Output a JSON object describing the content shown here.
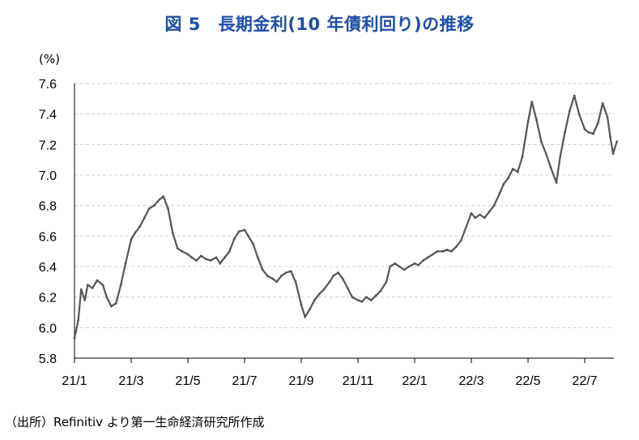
{
  "title": "図 5　長期金利(10 年債利回り)の推移",
  "unit": "(%)",
  "source": "（出所）Refinitiv より第一生命経済研究所作成",
  "chart_data": {
    "type": "line",
    "title": "図 5　長期金利(10 年債利回り)の推移",
    "xlabel": "",
    "ylabel": "(%)",
    "ylim": [
      5.8,
      7.6
    ],
    "yticks": [
      "5.8",
      "6.0",
      "6.2",
      "6.4",
      "6.6",
      "6.8",
      "7.0",
      "7.2",
      "7.4",
      "7.6"
    ],
    "xticks": [
      "21/1",
      "21/3",
      "21/5",
      "21/7",
      "21/9",
      "21/11",
      "22/1",
      "22/3",
      "22/5",
      "22/7"
    ],
    "grid": "horizontal dashed",
    "line_color": "#555555",
    "series": [
      {
        "name": "",
        "points": [
          [
            "2021-01-01",
            5.93
          ],
          [
            "2021-01-05",
            6.05
          ],
          [
            "2021-01-08",
            6.25
          ],
          [
            "2021-01-12",
            6.18
          ],
          [
            "2021-01-15",
            6.28
          ],
          [
            "2021-01-20",
            6.26
          ],
          [
            "2021-01-25",
            6.31
          ],
          [
            "2021-02-01",
            6.28
          ],
          [
            "2021-02-05",
            6.2
          ],
          [
            "2021-02-10",
            6.14
          ],
          [
            "2021-02-15",
            6.16
          ],
          [
            "2021-02-20",
            6.28
          ],
          [
            "2021-02-25",
            6.42
          ],
          [
            "2021-03-01",
            6.58
          ],
          [
            "2021-03-05",
            6.62
          ],
          [
            "2021-03-10",
            6.66
          ],
          [
            "2021-03-15",
            6.72
          ],
          [
            "2021-03-20",
            6.78
          ],
          [
            "2021-03-25",
            6.8
          ],
          [
            "2021-04-01",
            6.84
          ],
          [
            "2021-04-05",
            6.86
          ],
          [
            "2021-04-10",
            6.78
          ],
          [
            "2021-04-15",
            6.62
          ],
          [
            "2021-04-20",
            6.52
          ],
          [
            "2021-04-25",
            6.5
          ],
          [
            "2021-05-01",
            6.48
          ],
          [
            "2021-05-05",
            6.46
          ],
          [
            "2021-05-10",
            6.44
          ],
          [
            "2021-05-15",
            6.47
          ],
          [
            "2021-05-20",
            6.45
          ],
          [
            "2021-05-25",
            6.44
          ],
          [
            "2021-06-01",
            6.46
          ],
          [
            "2021-06-05",
            6.42
          ],
          [
            "2021-06-10",
            6.46
          ],
          [
            "2021-06-15",
            6.5
          ],
          [
            "2021-06-20",
            6.58
          ],
          [
            "2021-06-25",
            6.63
          ],
          [
            "2021-07-01",
            6.64
          ],
          [
            "2021-07-05",
            6.6
          ],
          [
            "2021-07-10",
            6.55
          ],
          [
            "2021-07-15",
            6.46
          ],
          [
            "2021-07-20",
            6.38
          ],
          [
            "2021-07-25",
            6.34
          ],
          [
            "2021-08-01",
            6.32
          ],
          [
            "2021-08-05",
            6.3
          ],
          [
            "2021-08-10",
            6.34
          ],
          [
            "2021-08-15",
            6.36
          ],
          [
            "2021-08-20",
            6.37
          ],
          [
            "2021-08-25",
            6.3
          ],
          [
            "2021-09-01",
            6.15
          ],
          [
            "2021-09-05",
            6.07
          ],
          [
            "2021-09-10",
            6.12
          ],
          [
            "2021-09-15",
            6.18
          ],
          [
            "2021-09-20",
            6.22
          ],
          [
            "2021-09-25",
            6.25
          ],
          [
            "2021-10-01",
            6.3
          ],
          [
            "2021-10-05",
            6.34
          ],
          [
            "2021-10-10",
            6.36
          ],
          [
            "2021-10-15",
            6.32
          ],
          [
            "2021-10-20",
            6.26
          ],
          [
            "2021-10-25",
            6.2
          ],
          [
            "2021-11-01",
            6.18
          ],
          [
            "2021-11-05",
            6.17
          ],
          [
            "2021-11-10",
            6.2
          ],
          [
            "2021-11-15",
            6.18
          ],
          [
            "2021-11-20",
            6.21
          ],
          [
            "2021-11-25",
            6.24
          ],
          [
            "2021-12-01",
            6.3
          ],
          [
            "2021-12-05",
            6.4
          ],
          [
            "2021-12-10",
            6.42
          ],
          [
            "2021-12-15",
            6.4
          ],
          [
            "2021-12-20",
            6.38
          ],
          [
            "2021-12-25",
            6.4
          ],
          [
            "2022-01-01",
            6.42
          ],
          [
            "2022-01-05",
            6.41
          ],
          [
            "2022-01-10",
            6.44
          ],
          [
            "2022-01-15",
            6.46
          ],
          [
            "2022-01-20",
            6.48
          ],
          [
            "2022-01-25",
            6.5
          ],
          [
            "2022-02-01",
            6.5
          ],
          [
            "2022-02-05",
            6.51
          ],
          [
            "2022-02-10",
            6.5
          ],
          [
            "2022-02-15",
            6.53
          ],
          [
            "2022-02-20",
            6.57
          ],
          [
            "2022-03-01",
            6.75
          ],
          [
            "2022-03-05",
            6.72
          ],
          [
            "2022-03-10",
            6.74
          ],
          [
            "2022-03-15",
            6.72
          ],
          [
            "2022-03-20",
            6.76
          ],
          [
            "2022-03-25",
            6.8
          ],
          [
            "2022-04-01",
            6.88
          ],
          [
            "2022-04-05",
            6.94
          ],
          [
            "2022-04-10",
            6.98
          ],
          [
            "2022-04-15",
            7.04
          ],
          [
            "2022-04-20",
            7.02
          ],
          [
            "2022-04-25",
            7.12
          ],
          [
            "2022-05-01",
            7.35
          ],
          [
            "2022-05-05",
            7.48
          ],
          [
            "2022-05-10",
            7.36
          ],
          [
            "2022-05-15",
            7.22
          ],
          [
            "2022-05-20",
            7.14
          ],
          [
            "2022-05-25",
            7.05
          ],
          [
            "2022-06-01",
            6.95
          ],
          [
            "2022-06-05",
            7.12
          ],
          [
            "2022-06-10",
            7.28
          ],
          [
            "2022-06-15",
            7.42
          ],
          [
            "2022-06-20",
            7.52
          ],
          [
            "2022-06-25",
            7.4
          ],
          [
            "2022-07-01",
            7.3
          ],
          [
            "2022-07-05",
            7.28
          ],
          [
            "2022-07-10",
            7.27
          ],
          [
            "2022-07-15",
            7.34
          ],
          [
            "2022-07-20",
            7.47
          ],
          [
            "2022-07-25",
            7.38
          ],
          [
            "2022-07-28",
            7.25
          ],
          [
            "2022-08-01",
            7.14
          ],
          [
            "2022-08-05",
            7.22
          ]
        ]
      }
    ]
  }
}
